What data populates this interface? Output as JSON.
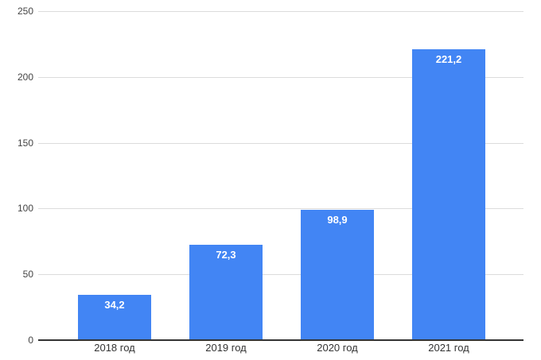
{
  "chart_data": {
    "type": "bar",
    "title": "",
    "xlabel": "",
    "ylabel": "",
    "categories": [
      "2018 год",
      "2019 год",
      "2020 год",
      "2021 год"
    ],
    "values": [
      34.2,
      72.3,
      98.9,
      221.2
    ],
    "value_labels": [
      "34,2",
      "72,3",
      "98,9",
      "221,2"
    ],
    "ylim": [
      0,
      250
    ],
    "yticks": [
      0,
      50,
      100,
      150,
      200,
      250
    ],
    "ytick_labels": [
      "0",
      "50",
      "100",
      "150",
      "200",
      "250"
    ],
    "grid": true,
    "legend": "none",
    "colors": {
      "bar": "#4285f4",
      "value_label": "#ffffff",
      "gridline": "#dcdcdc",
      "axis_line": "#333333",
      "y_tick_label": "#444444",
      "x_tick_label": "#333333",
      "background": "#ffffff"
    }
  }
}
